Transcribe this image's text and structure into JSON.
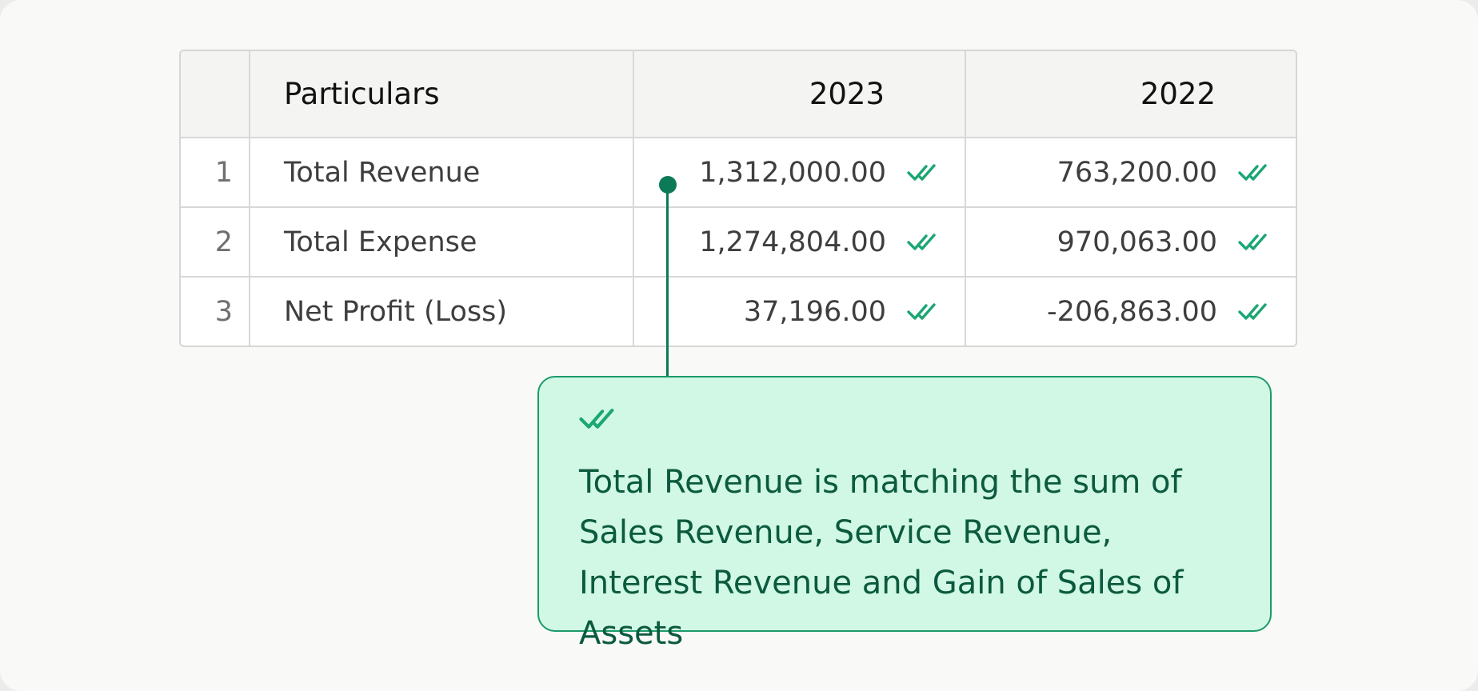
{
  "table": {
    "headers": {
      "index": "",
      "particulars": "Particulars",
      "year1": "2023",
      "year2": "2022"
    },
    "rows": [
      {
        "index": "1",
        "name": "Total Revenue",
        "v2023": "1,312,000.00",
        "v2022": "763,200.00"
      },
      {
        "index": "2",
        "name": "Total Expense",
        "v2023": "1,274,804.00",
        "v2022": "970,063.00"
      },
      {
        "index": "3",
        "name": "Net Profit (Loss)",
        "v2023": "37,196.00",
        "v2022": "-206,863.00"
      }
    ]
  },
  "callout": {
    "icon": "double-check-icon",
    "text": "Total Revenue is matching the sum of Sales Revenue, Service Revenue, Interest Revenue and Gain of Sales of Assets"
  },
  "colors": {
    "accent": "#0c7a56",
    "check": "#1ba673",
    "callout_bg": "#d1f8e4",
    "callout_text": "#0b5a3f"
  }
}
